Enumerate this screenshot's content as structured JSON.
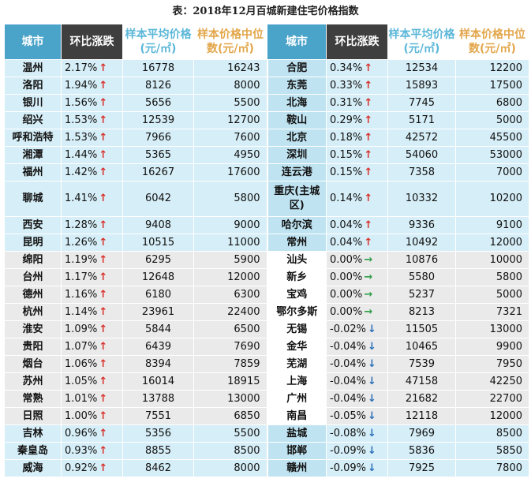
{
  "title": "表：2018年12月百城新建住宅价格指数",
  "headers": {
    "city": "城市",
    "change": "环比涨跌",
    "avg": "样本平均价格(元/㎡)",
    "median": "样本价格中位数(元/㎡)"
  },
  "arrow_glyphs": {
    "up": "↑",
    "flat": "→",
    "down": "↓"
  },
  "colors": {
    "up": "#d9302b",
    "flat": "#2e9e4a",
    "down": "#2a6fb8",
    "header_city": "#4aa3c8",
    "header_change": "#3f3f3f",
    "row_blue": "#d6eef7",
    "row_gray": "#eaeaea"
  },
  "rows": [
    {
      "band": "blue",
      "left": {
        "city": "温州",
        "change": "2.17%",
        "dir": "up",
        "avg": "16778",
        "median": "16243"
      },
      "right": {
        "city": "合肥",
        "change": "0.34%",
        "dir": "up",
        "avg": "12534",
        "median": "12200"
      }
    },
    {
      "band": "blue",
      "left": {
        "city": "洛阳",
        "change": "1.94%",
        "dir": "up",
        "avg": "8126",
        "median": "8000"
      },
      "right": {
        "city": "东莞",
        "change": "0.33%",
        "dir": "up",
        "avg": "15893",
        "median": "17500"
      }
    },
    {
      "band": "blue",
      "left": {
        "city": "银川",
        "change": "1.56%",
        "dir": "up",
        "avg": "5656",
        "median": "5500"
      },
      "right": {
        "city": "北海",
        "change": "0.31%",
        "dir": "up",
        "avg": "7745",
        "median": "6800"
      }
    },
    {
      "band": "blue",
      "left": {
        "city": "绍兴",
        "change": "1.53%",
        "dir": "up",
        "avg": "12539",
        "median": "12700"
      },
      "right": {
        "city": "鞍山",
        "change": "0.29%",
        "dir": "up",
        "avg": "5171",
        "median": "5000"
      }
    },
    {
      "band": "blue",
      "left": {
        "city": "呼和浩特",
        "change": "1.53%",
        "dir": "up",
        "avg": "7966",
        "median": "7600"
      },
      "right": {
        "city": "北京",
        "change": "0.18%",
        "dir": "up",
        "avg": "42572",
        "median": "45500"
      }
    },
    {
      "band": "blue",
      "left": {
        "city": "湘潭",
        "change": "1.44%",
        "dir": "up",
        "avg": "5365",
        "median": "4950"
      },
      "right": {
        "city": "深圳",
        "change": "0.15%",
        "dir": "up",
        "avg": "54060",
        "median": "53000"
      }
    },
    {
      "band": "blue",
      "left": {
        "city": "福州",
        "change": "1.42%",
        "dir": "up",
        "avg": "16267",
        "median": "17600"
      },
      "right": {
        "city": "连云港",
        "change": "0.15%",
        "dir": "up",
        "avg": "7358",
        "median": "7000"
      }
    },
    {
      "band": "blue",
      "tall": true,
      "left": {
        "city": "聊城",
        "change": "1.41%",
        "dir": "up",
        "avg": "6042",
        "median": "5800"
      },
      "right": {
        "city": "重庆(主城区)",
        "change": "0.14%",
        "dir": "up",
        "avg": "10332",
        "median": "10200"
      }
    },
    {
      "band": "blue",
      "left": {
        "city": "西安",
        "change": "1.28%",
        "dir": "up",
        "avg": "9408",
        "median": "9000"
      },
      "right": {
        "city": "哈尔滨",
        "change": "0.04%",
        "dir": "up",
        "avg": "9336",
        "median": "9100"
      }
    },
    {
      "band": "blue",
      "left": {
        "city": "昆明",
        "change": "1.26%",
        "dir": "up",
        "avg": "10515",
        "median": "11000"
      },
      "right": {
        "city": "常州",
        "change": "0.04%",
        "dir": "up",
        "avg": "10492",
        "median": "12000"
      }
    },
    {
      "band": "gray",
      "left": {
        "city": "绵阳",
        "change": "1.19%",
        "dir": "up",
        "avg": "6295",
        "median": "5900"
      },
      "right": {
        "city": "汕头",
        "change": "0.00%",
        "dir": "flat",
        "avg": "10876",
        "median": "10000"
      }
    },
    {
      "band": "gray",
      "left": {
        "city": "台州",
        "change": "1.17%",
        "dir": "up",
        "avg": "12648",
        "median": "12000"
      },
      "right": {
        "city": "新乡",
        "change": "0.00%",
        "dir": "flat",
        "avg": "5580",
        "median": "5800"
      }
    },
    {
      "band": "gray",
      "left": {
        "city": "德州",
        "change": "1.16%",
        "dir": "up",
        "avg": "6180",
        "median": "6300"
      },
      "right": {
        "city": "宝鸡",
        "change": "0.00%",
        "dir": "flat",
        "avg": "5237",
        "median": "5000"
      }
    },
    {
      "band": "gray",
      "left": {
        "city": "杭州",
        "change": "1.14%",
        "dir": "up",
        "avg": "23961",
        "median": "22400"
      },
      "right": {
        "city": "鄂尔多斯",
        "change": "0.00%",
        "dir": "flat",
        "avg": "8213",
        "median": "7321"
      }
    },
    {
      "band": "gray",
      "left": {
        "city": "淮安",
        "change": "1.09%",
        "dir": "up",
        "avg": "5844",
        "median": "6500"
      },
      "right": {
        "city": "无锡",
        "change": "-0.02%",
        "dir": "down",
        "avg": "11505",
        "median": "13000"
      }
    },
    {
      "band": "gray",
      "left": {
        "city": "贵阳",
        "change": "1.07%",
        "dir": "up",
        "avg": "6439",
        "median": "7690"
      },
      "right": {
        "city": "金华",
        "change": "-0.04%",
        "dir": "down",
        "avg": "10465",
        "median": "9900"
      }
    },
    {
      "band": "gray",
      "left": {
        "city": "烟台",
        "change": "1.06%",
        "dir": "up",
        "avg": "8394",
        "median": "7859"
      },
      "right": {
        "city": "芜湖",
        "change": "-0.04%",
        "dir": "down",
        "avg": "7539",
        "median": "7950"
      }
    },
    {
      "band": "gray",
      "left": {
        "city": "苏州",
        "change": "1.05%",
        "dir": "up",
        "avg": "16014",
        "median": "18915"
      },
      "right": {
        "city": "上海",
        "change": "-0.04%",
        "dir": "down",
        "avg": "47158",
        "median": "42250"
      }
    },
    {
      "band": "gray",
      "left": {
        "city": "常熟",
        "change": "1.01%",
        "dir": "up",
        "avg": "13788",
        "median": "13000"
      },
      "right": {
        "city": "广州",
        "change": "-0.04%",
        "dir": "down",
        "avg": "21682",
        "median": "22700"
      }
    },
    {
      "band": "gray",
      "left": {
        "city": "日照",
        "change": "1.00%",
        "dir": "up",
        "avg": "7551",
        "median": "6850"
      },
      "right": {
        "city": "南昌",
        "change": "-0.05%",
        "dir": "down",
        "avg": "12118",
        "median": "12000"
      }
    },
    {
      "band": "blue",
      "left": {
        "city": "吉林",
        "change": "0.96%",
        "dir": "up",
        "avg": "5356",
        "median": "5500"
      },
      "right": {
        "city": "盐城",
        "change": "-0.08%",
        "dir": "down",
        "avg": "7969",
        "median": "8500"
      }
    },
    {
      "band": "blue",
      "left": {
        "city": "秦皇岛",
        "change": "0.93%",
        "dir": "up",
        "avg": "8855",
        "median": "8500"
      },
      "right": {
        "city": "邯郸",
        "change": "-0.09%",
        "dir": "down",
        "avg": "5836",
        "median": "5850"
      }
    },
    {
      "band": "blue",
      "left": {
        "city": "威海",
        "change": "0.92%",
        "dir": "up",
        "avg": "8462",
        "median": "8000"
      },
      "right": {
        "city": "赣州",
        "change": "-0.09%",
        "dir": "down",
        "avg": "7925",
        "median": "7800"
      }
    }
  ]
}
